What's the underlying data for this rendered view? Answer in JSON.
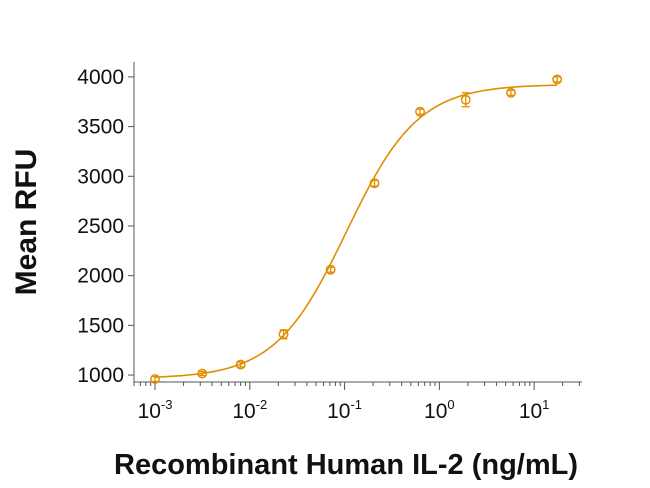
{
  "chart_data": {
    "type": "scatter",
    "xscale": "log",
    "xlabel": "Recombinant Human IL-2 (ng/mL)",
    "ylabel": "Mean RFU",
    "xlim": [
      0.0006,
      32
    ],
    "ylim": [
      930,
      4150
    ],
    "yticks": [
      1000,
      1500,
      2000,
      2500,
      3000,
      3500,
      4000
    ],
    "xticks": [
      {
        "value": 0.001,
        "base": "10",
        "exp": "-3"
      },
      {
        "value": 0.01,
        "base": "10",
        "exp": "-2"
      },
      {
        "value": 0.1,
        "base": "10",
        "exp": "-1"
      },
      {
        "value": 1,
        "base": "10",
        "exp": "0"
      },
      {
        "value": 10,
        "base": "10",
        "exp": "1"
      }
    ],
    "series": [
      {
        "x": [
          0.001,
          0.00315,
          0.008,
          0.0227,
          0.0713,
          0.207,
          0.626,
          1.9,
          5.7,
          17.5
        ],
        "y": [
          960,
          1015,
          1105,
          1410,
          2060,
          2930,
          3650,
          3770,
          3840,
          3975
        ],
        "yerr": [
          25,
          20,
          25,
          45,
          25,
          30,
          25,
          70,
          25,
          25
        ]
      }
    ],
    "fit": {
      "type": "4PL",
      "bottom": 965,
      "top": 3925,
      "ec50": 0.105,
      "hill": 1.15
    },
    "colors": {
      "series": "#e08e00",
      "axis": "#555555",
      "text": "#111111"
    },
    "grid": false
  }
}
